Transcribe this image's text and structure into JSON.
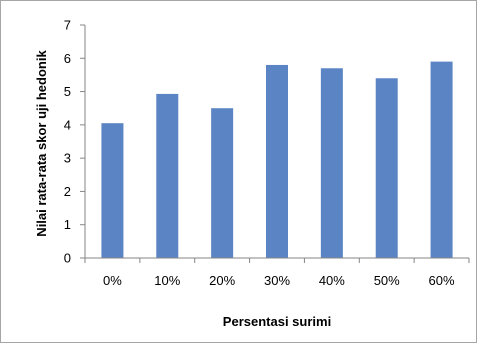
{
  "chart_data": {
    "type": "bar",
    "title": "",
    "xlabel": "Persentasi surimi",
    "ylabel": "Nilai rata-rata skor uji hedonik",
    "categories": [
      "0%",
      "10%",
      "20%",
      "30%",
      "40%",
      "50%",
      "60%"
    ],
    "values": [
      4.05,
      4.93,
      4.5,
      5.8,
      5.7,
      5.4,
      5.9
    ],
    "ylim": [
      0,
      7
    ],
    "yticks": [
      "0",
      "1",
      "2",
      "3",
      "4",
      "5",
      "6",
      "7"
    ],
    "grid": false,
    "legend": "none",
    "bar_color": "#5b84c4",
    "axis_color": "#868686"
  }
}
